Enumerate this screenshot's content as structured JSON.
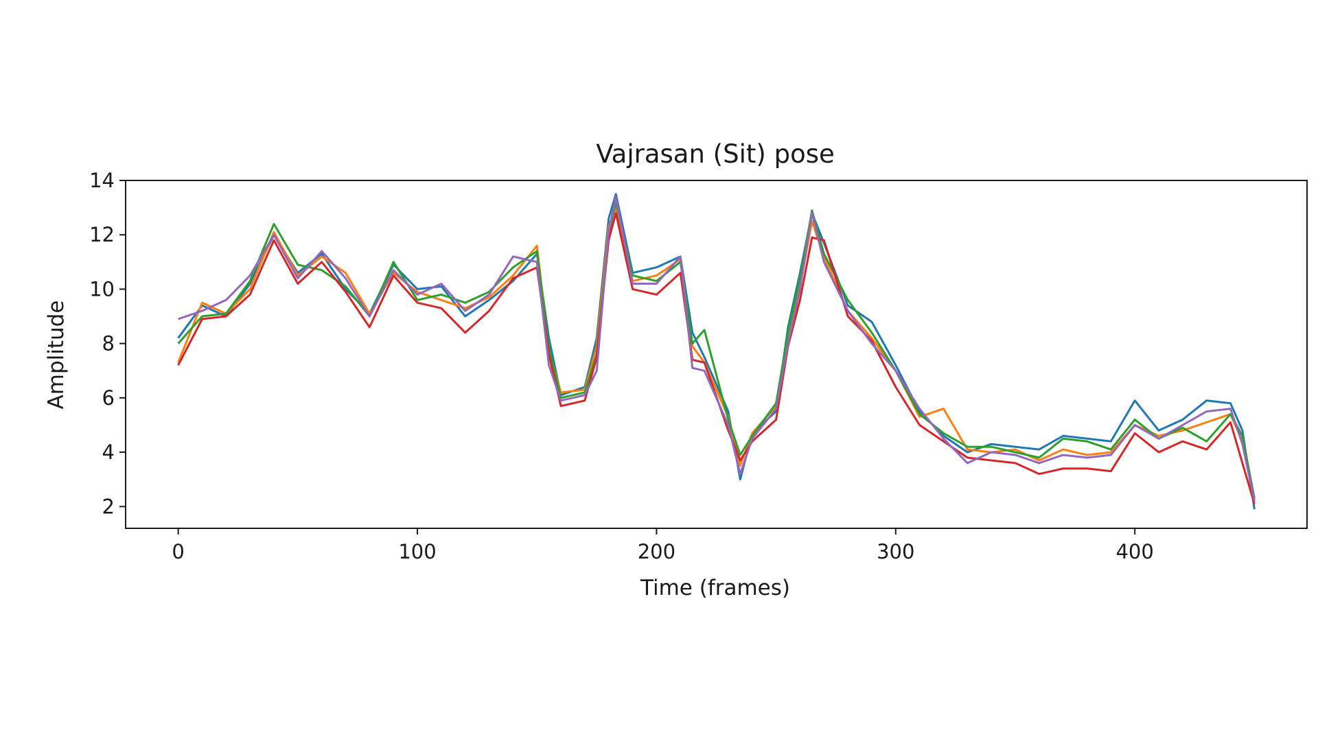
{
  "chart_data": {
    "type": "line",
    "title": "Vajrasan (Sit) pose",
    "xlabel": "Time (frames)",
    "ylabel": "Amplitude",
    "xlim": [
      -22,
      472
    ],
    "ylim": [
      1.2,
      14
    ],
    "xticks": [
      0,
      100,
      200,
      300,
      400
    ],
    "yticks": [
      2,
      4,
      6,
      8,
      10,
      12,
      14
    ],
    "grid": false,
    "legend": "none",
    "colors": [
      "#1f77b4",
      "#ff7f0e",
      "#2ca02c",
      "#d62728",
      "#9467bd"
    ],
    "x": [
      0,
      10,
      20,
      30,
      40,
      50,
      60,
      70,
      80,
      90,
      100,
      110,
      120,
      130,
      140,
      150,
      155,
      160,
      170,
      175,
      180,
      183,
      190,
      200,
      210,
      215,
      220,
      230,
      235,
      240,
      250,
      255,
      260,
      265,
      270,
      280,
      290,
      300,
      310,
      320,
      330,
      340,
      350,
      360,
      370,
      380,
      390,
      400,
      410,
      420,
      430,
      440,
      445,
      450
    ],
    "series": [
      {
        "values": [
          8.2,
          9.4,
          9.0,
          10.2,
          12.0,
          10.6,
          11.3,
          10.0,
          9.1,
          10.9,
          10.0,
          10.1,
          9.0,
          9.6,
          10.3,
          11.3,
          8.2,
          6.1,
          6.4,
          8.2,
          12.6,
          13.5,
          10.6,
          10.8,
          11.2,
          8.4,
          7.5,
          5.5,
          3.0,
          4.7,
          5.5,
          8.6,
          10.6,
          12.8,
          11.7,
          9.4,
          8.8,
          7.2,
          5.5,
          4.6,
          4.0,
          4.3,
          4.2,
          4.1,
          4.6,
          4.5,
          4.4,
          5.9,
          4.8,
          5.2,
          5.9,
          5.8,
          4.8,
          1.9
        ]
      },
      {
        "values": [
          7.3,
          9.5,
          9.1,
          10.0,
          12.1,
          10.5,
          11.2,
          10.6,
          9.1,
          10.6,
          9.9,
          9.6,
          9.3,
          9.7,
          10.5,
          11.6,
          7.8,
          6.2,
          6.3,
          7.9,
          12.3,
          13.0,
          10.3,
          10.5,
          11.1,
          7.9,
          7.3,
          5.3,
          3.5,
          4.7,
          5.7,
          8.2,
          10.1,
          12.5,
          11.2,
          9.2,
          8.2,
          7.0,
          5.3,
          5.6,
          4.1,
          4.0,
          4.1,
          3.7,
          4.1,
          3.9,
          4.0,
          5.0,
          4.6,
          4.8,
          5.1,
          5.4,
          4.4,
          2.2
        ]
      },
      {
        "values": [
          8.0,
          9.0,
          9.1,
          10.3,
          12.4,
          10.9,
          10.7,
          10.1,
          9.0,
          11.0,
          9.6,
          9.8,
          9.5,
          9.9,
          10.8,
          11.4,
          7.9,
          6.0,
          6.2,
          7.6,
          12.0,
          13.2,
          10.5,
          10.3,
          11.0,
          8.0,
          8.5,
          5.2,
          3.9,
          4.6,
          5.8,
          8.4,
          10.4,
          12.9,
          11.3,
          9.6,
          8.4,
          7.0,
          5.4,
          4.7,
          4.2,
          4.2,
          4.0,
          3.8,
          4.5,
          4.4,
          4.1,
          5.2,
          4.5,
          4.9,
          4.4,
          5.4,
          4.6,
          2.3
        ]
      },
      {
        "values": [
          7.2,
          8.9,
          9.0,
          9.8,
          11.8,
          10.2,
          11.0,
          9.9,
          8.6,
          10.5,
          9.5,
          9.3,
          8.4,
          9.2,
          10.4,
          10.8,
          7.6,
          5.7,
          5.9,
          7.5,
          11.8,
          12.8,
          10.0,
          9.8,
          10.6,
          7.4,
          7.3,
          4.8,
          3.7,
          4.4,
          5.2,
          7.9,
          9.6,
          11.9,
          11.8,
          9.0,
          8.1,
          6.4,
          5.0,
          4.4,
          3.8,
          3.7,
          3.6,
          3.2,
          3.4,
          3.4,
          3.3,
          4.7,
          4.0,
          4.4,
          4.1,
          5.1,
          3.6,
          2.1
        ]
      },
      {
        "values": [
          8.9,
          9.2,
          9.6,
          10.5,
          12.0,
          10.4,
          11.4,
          10.4,
          9.0,
          10.7,
          9.8,
          10.2,
          9.2,
          9.8,
          11.2,
          11.0,
          7.2,
          5.9,
          6.1,
          7.0,
          12.1,
          13.4,
          10.2,
          10.2,
          11.2,
          7.1,
          7.0,
          5.0,
          3.2,
          4.5,
          5.6,
          8.0,
          10.0,
          12.8,
          11.0,
          9.2,
          8.0,
          7.0,
          5.6,
          4.5,
          3.6,
          4.0,
          3.9,
          3.6,
          3.9,
          3.8,
          3.9,
          5.0,
          4.5,
          5.0,
          5.5,
          5.6,
          4.3,
          2.2
        ]
      }
    ]
  }
}
